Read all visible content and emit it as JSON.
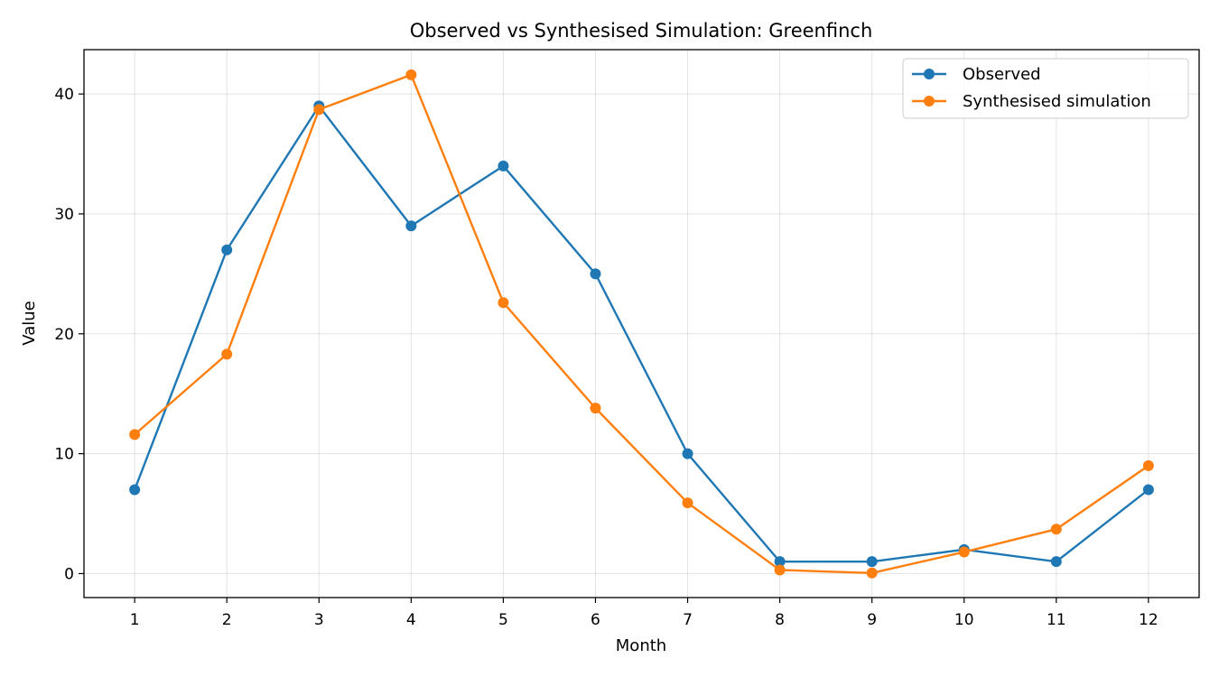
{
  "chart_data": {
    "type": "line",
    "title": "Observed vs Synthesised Simulation: Greenfinch",
    "xlabel": "Month",
    "ylabel": "Value",
    "x": [
      1,
      2,
      3,
      4,
      5,
      6,
      7,
      8,
      9,
      10,
      11,
      12
    ],
    "xticks": [
      "1",
      "2",
      "3",
      "4",
      "5",
      "6",
      "7",
      "8",
      "9",
      "10",
      "11",
      "12"
    ],
    "yticks": [
      "0",
      "10",
      "20",
      "30",
      "40"
    ],
    "xlim": [
      0.45,
      12.55
    ],
    "ylim": [
      -2.0,
      43.7
    ],
    "grid": true,
    "legend_position": "top-right",
    "series": [
      {
        "name": "Observed",
        "color": "#1f77b4",
        "values": [
          7,
          27,
          39,
          29,
          34,
          25,
          10,
          1,
          1,
          2,
          1,
          7
        ]
      },
      {
        "name": "Synthesised simulation",
        "color": "#ff7f0e",
        "values": [
          11.6,
          18.3,
          38.7,
          41.6,
          22.6,
          13.8,
          5.9,
          0.3,
          0.05,
          1.8,
          3.7,
          9.0
        ]
      }
    ]
  }
}
